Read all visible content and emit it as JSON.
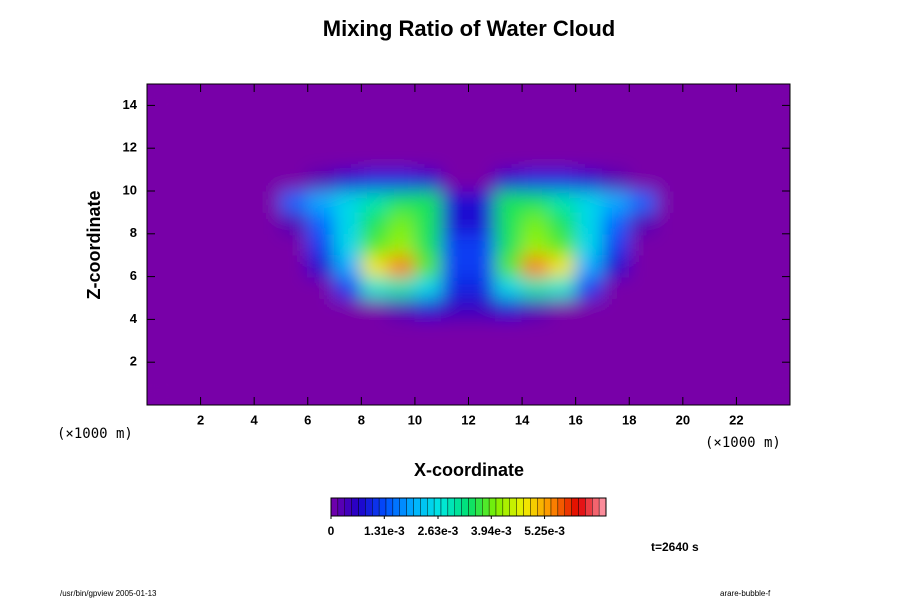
{
  "chart_data": {
    "type": "contour",
    "title": "Mixing Ratio of Water Cloud",
    "x_label": "X-coordinate",
    "y_label": "Z-coordinate",
    "x_unit": "(×1000 m)",
    "y_unit": "(×1000 m)",
    "time_label": "t=2640 s",
    "footer_left": "/usr/bin/gpview 2005-01-13",
    "footer_right": "arare-bubble-f",
    "xlim": [
      0,
      24
    ],
    "ylim": [
      0,
      15
    ],
    "xticks": [
      2,
      4,
      6,
      8,
      10,
      12,
      14,
      16,
      18,
      20,
      22
    ],
    "yticks": [
      2,
      4,
      6,
      8,
      10,
      12,
      14
    ],
    "x": [
      0.5,
      1.5,
      2.5,
      3.5,
      4.5,
      5.5,
      6.5,
      7.5,
      8.5,
      9.5,
      10.5,
      11.5,
      12.5,
      13.5,
      14.5,
      15.5,
      16.5,
      17.5,
      18.5,
      19.5,
      20.5,
      21.5,
      22.5,
      23.5
    ],
    "y": [
      0.5,
      1.5,
      2.5,
      3.5,
      4.5,
      5.5,
      6.5,
      7.5,
      8.5,
      9.5,
      10.5,
      11.5,
      12.5,
      13.5,
      14.5
    ],
    "z": [
      [
        0,
        0,
        0,
        0,
        0,
        0,
        0,
        0,
        0,
        0,
        0,
        0,
        0,
        0,
        0,
        0,
        0,
        0,
        0,
        0,
        0,
        0,
        0,
        0
      ],
      [
        0,
        0,
        0,
        0,
        0,
        0,
        0,
        0,
        0,
        0,
        0,
        0,
        0,
        0,
        0,
        0,
        0,
        0,
        0,
        0,
        0,
        0,
        0,
        0
      ],
      [
        0,
        0,
        0,
        0,
        0,
        0,
        0,
        0,
        0,
        0,
        0,
        0,
        0,
        0,
        0,
        0,
        0,
        0,
        0,
        0,
        0,
        0,
        0,
        0
      ],
      [
        0,
        0,
        0,
        0,
        0,
        0,
        0,
        0,
        0,
        0,
        0,
        0,
        0,
        0,
        0,
        0,
        0,
        0,
        0,
        0,
        0,
        0,
        0,
        0
      ],
      [
        0,
        0,
        0,
        0,
        0,
        0,
        0,
        0,
        0,
        0.0003,
        0.0008,
        0.0005,
        0.0005,
        0.0008,
        0.0003,
        0,
        0,
        0,
        0,
        0,
        0,
        0,
        0,
        0
      ],
      [
        0,
        0,
        0,
        0,
        0,
        0,
        0,
        0.0012,
        0.0028,
        0.003,
        0.0025,
        0.001,
        0.001,
        0.0025,
        0.003,
        0.0028,
        0.0012,
        0,
        0,
        0,
        0,
        0,
        0,
        0
      ],
      [
        0,
        0,
        0,
        0,
        0,
        0,
        0.0008,
        0.002,
        0.0048,
        0.0055,
        0.0038,
        0.0012,
        0.0012,
        0.0038,
        0.0055,
        0.0048,
        0.002,
        0.0008,
        0,
        0,
        0,
        0,
        0,
        0
      ],
      [
        0,
        0,
        0,
        0,
        0,
        0,
        0.0012,
        0.0025,
        0.0038,
        0.0042,
        0.0035,
        0.0012,
        0.0012,
        0.0035,
        0.0042,
        0.0038,
        0.0025,
        0.0012,
        0,
        0,
        0,
        0,
        0,
        0
      ],
      [
        0,
        0,
        0,
        0,
        0,
        0.0003,
        0.0015,
        0.0025,
        0.0035,
        0.004,
        0.0035,
        0.0008,
        0.0008,
        0.0035,
        0.004,
        0.0035,
        0.0025,
        0.0015,
        0.0003,
        0,
        0,
        0,
        0,
        0
      ],
      [
        0,
        0,
        0,
        0,
        0,
        0.0015,
        0.002,
        0.0025,
        0.003,
        0.0035,
        0.0035,
        0.0008,
        0.0008,
        0.0035,
        0.0035,
        0.003,
        0.0025,
        0.002,
        0.0015,
        0,
        0,
        0,
        0,
        0
      ],
      [
        0,
        0,
        0,
        0,
        0,
        0,
        0.0003,
        0.0008,
        0.001,
        0.001,
        0.0008,
        0,
        0,
        0.0008,
        0.001,
        0.001,
        0.0008,
        0.0003,
        0,
        0,
        0,
        0,
        0,
        0
      ],
      [
        0,
        0,
        0,
        0,
        0,
        0,
        0,
        0,
        0,
        0,
        0,
        0,
        0,
        0,
        0,
        0,
        0,
        0,
        0,
        0,
        0,
        0,
        0,
        0
      ],
      [
        0,
        0,
        0,
        0,
        0,
        0,
        0,
        0,
        0,
        0,
        0,
        0,
        0,
        0,
        0,
        0,
        0,
        0,
        0,
        0,
        0,
        0,
        0,
        0
      ],
      [
        0,
        0,
        0,
        0,
        0,
        0,
        0,
        0,
        0,
        0,
        0,
        0,
        0,
        0,
        0,
        0,
        0,
        0,
        0,
        0,
        0,
        0,
        0,
        0
      ],
      [
        0,
        0,
        0,
        0,
        0,
        0,
        0,
        0,
        0,
        0,
        0,
        0,
        0,
        0,
        0,
        0,
        0,
        0,
        0,
        0,
        0,
        0,
        0,
        0
      ]
    ],
    "clim": [
      0,
      0.00676
    ],
    "colorbar_ticks": [
      0,
      {
        "value": 0.00131,
        "label": "1.31e-3"
      },
      {
        "value": 0.00263,
        "label": "2.63e-3"
      },
      {
        "value": 0.00394,
        "label": "3.94e-3"
      },
      {
        "value": 0.00525,
        "label": "5.25e-3"
      }
    ],
    "colormap": [
      "#7800a8",
      "#2000c8",
      "#0050ff",
      "#00b0ff",
      "#00e8e0",
      "#00e070",
      "#80f000",
      "#f0f000",
      "#ff9000",
      "#e00000",
      "#ffa0b0"
    ]
  }
}
